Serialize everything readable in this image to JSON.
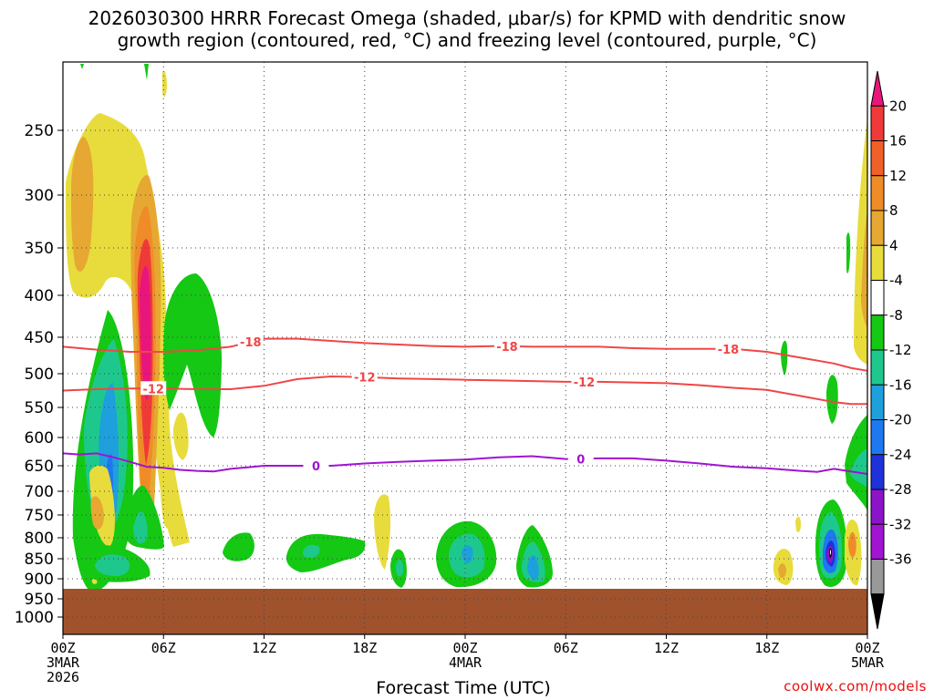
{
  "title_line1": "2026030300 HRRR Forecast Omega (shaded, μbar/s) for KPMD with dendritic snow",
  "title_line2": "growth region (contoured, red, °C) and freezing level (contoured, purple, °C)",
  "credit": "coolwx.com/models",
  "chart_data": {
    "type": "heatmap",
    "title": "2026030300 HRRR Forecast Omega (shaded, μbar/s) for KPMD with dendritic snow growth region (contoured, red, °C) and freezing level (contoured, purple, °C)",
    "xlabel": "Forecast Time (UTC)",
    "ylabel": "",
    "x_range_hours": [
      0,
      48
    ],
    "x_ticks": [
      {
        "h": 0,
        "lines": [
          "00Z",
          "3MAR",
          "2026"
        ]
      },
      {
        "h": 6,
        "lines": [
          "06Z"
        ]
      },
      {
        "h": 12,
        "lines": [
          "12Z"
        ]
      },
      {
        "h": 18,
        "lines": [
          "18Z"
        ]
      },
      {
        "h": 24,
        "lines": [
          "00Z",
          "4MAR"
        ]
      },
      {
        "h": 30,
        "lines": [
          "06Z"
        ]
      },
      {
        "h": 36,
        "lines": [
          "12Z"
        ]
      },
      {
        "h": 42,
        "lines": [
          "18Z"
        ]
      },
      {
        "h": 48,
        "lines": [
          "00Z",
          "5MAR"
        ]
      }
    ],
    "y_ticks": [
      250,
      300,
      350,
      400,
      450,
      500,
      550,
      600,
      650,
      700,
      750,
      800,
      850,
      900,
      950,
      1000
    ],
    "y_axis": "pressure (hPa), reversed",
    "y_range": [
      200,
      1050
    ],
    "grid": true,
    "colorbar": {
      "labels": [
        20,
        16,
        12,
        8,
        4,
        -4,
        -8,
        -12,
        -16,
        -20,
        -24,
        -28,
        -32,
        -36
      ],
      "colors": [
        "#e8167c",
        "#f03a3a",
        "#f06028",
        "#f08c28",
        "#e6a832",
        "#e8dc3c",
        "#ffffff",
        "#14c814",
        "#1ec88c",
        "#1ea0dc",
        "#1e78f0",
        "#1e32dc",
        "#8c14c8",
        "#a014d2",
        "#999999",
        "#000000"
      ]
    },
    "contours": [
      {
        "label": "-18",
        "color": "#f04646",
        "label_hours": [
          11.2,
          26.5,
          39.7
        ],
        "points": [
          [
            0,
            463
          ],
          [
            2,
            467
          ],
          [
            4,
            470
          ],
          [
            6,
            470
          ],
          [
            8,
            468
          ],
          [
            10,
            463
          ],
          [
            12,
            452
          ],
          [
            14,
            452
          ],
          [
            16,
            455
          ],
          [
            18,
            458
          ],
          [
            20,
            460
          ],
          [
            22,
            462
          ],
          [
            24,
            463
          ],
          [
            26,
            462
          ],
          [
            28,
            463
          ],
          [
            30,
            463
          ],
          [
            32,
            463
          ],
          [
            34,
            465
          ],
          [
            36,
            466
          ],
          [
            38,
            466
          ],
          [
            40,
            466
          ],
          [
            42,
            470
          ],
          [
            44,
            478
          ],
          [
            46,
            486
          ],
          [
            47,
            492
          ],
          [
            48,
            496
          ]
        ]
      },
      {
        "label": "-12",
        "color": "#f04646",
        "label_hours": [
          5.4,
          18.0,
          31.1
        ],
        "points": [
          [
            0,
            525
          ],
          [
            2,
            523
          ],
          [
            4,
            522
          ],
          [
            6,
            522
          ],
          [
            8,
            523
          ],
          [
            10,
            523
          ],
          [
            12,
            518
          ],
          [
            14,
            508
          ],
          [
            16,
            504
          ],
          [
            18,
            505
          ],
          [
            20,
            507
          ],
          [
            22,
            508
          ],
          [
            24,
            509
          ],
          [
            26,
            510
          ],
          [
            28,
            511
          ],
          [
            30,
            512
          ],
          [
            32,
            512
          ],
          [
            34,
            513
          ],
          [
            36,
            514
          ],
          [
            38,
            517
          ],
          [
            40,
            521
          ],
          [
            42,
            524
          ],
          [
            44,
            533
          ],
          [
            46,
            542
          ],
          [
            47,
            545
          ],
          [
            48,
            545
          ]
        ]
      },
      {
        "label": "0",
        "color": "#a014d2",
        "label_hours": [
          15.1,
          30.9
        ],
        "points": [
          [
            0,
            628
          ],
          [
            1,
            630
          ],
          [
            2,
            628
          ],
          [
            3,
            635
          ],
          [
            4,
            643
          ],
          [
            5,
            652
          ],
          [
            6,
            654
          ],
          [
            7,
            658
          ],
          [
            8,
            660
          ],
          [
            9,
            661
          ],
          [
            10,
            656
          ],
          [
            11,
            653
          ],
          [
            12,
            650
          ],
          [
            14,
            650
          ],
          [
            16,
            650
          ],
          [
            18,
            646
          ],
          [
            20,
            643
          ],
          [
            22,
            641
          ],
          [
            24,
            639
          ],
          [
            26,
            635
          ],
          [
            27,
            634
          ],
          [
            28,
            633
          ],
          [
            30,
            638
          ],
          [
            32,
            637
          ],
          [
            34,
            637
          ],
          [
            36,
            641
          ],
          [
            38,
            646
          ],
          [
            40,
            652
          ],
          [
            42,
            655
          ],
          [
            44,
            660
          ],
          [
            45,
            662
          ],
          [
            46,
            656
          ],
          [
            47,
            661
          ],
          [
            48,
            666
          ]
        ]
      }
    ],
    "terrain": {
      "color": "#a0522d",
      "top_pressure": 925
    }
  }
}
